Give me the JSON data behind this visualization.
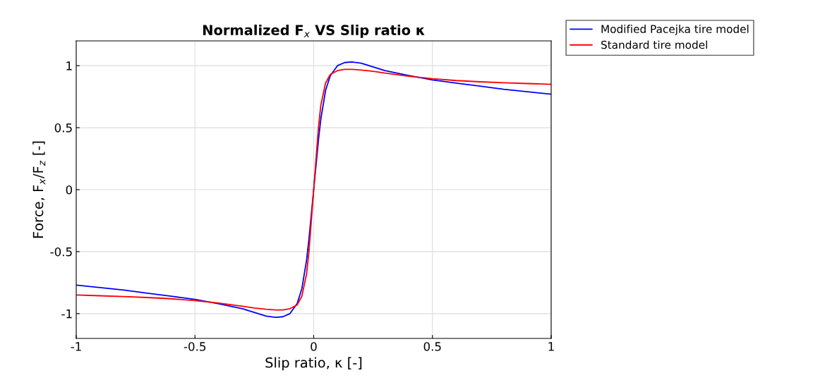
{
  "chart_data": {
    "type": "line",
    "title": "Normalized F$_{x}$ VS Slip ratio κ",
    "xlabel": "Slip ratio, κ [-]",
    "ylabel": "Force, F$_{x}$/F$_{z}$ [-]",
    "xlim": [
      -1,
      1
    ],
    "ylim": [
      -1.2,
      1.2
    ],
    "xticks": [
      -1,
      -0.5,
      0,
      0.5,
      1
    ],
    "yticks": [
      -1,
      -0.5,
      0,
      0.5,
      1
    ],
    "grid": true,
    "legend": "top right outside",
    "series": [
      {
        "name": "Modified Pacejka tire model",
        "color": "#0000ff",
        "x": [
          -1,
          -0.9,
          -0.8,
          -0.7,
          -0.6,
          -0.5,
          -0.4,
          -0.3,
          -0.25,
          -0.2,
          -0.16,
          -0.13,
          -0.1,
          -0.07,
          -0.05,
          -0.03,
          -0.02,
          -0.01,
          0,
          0.01,
          0.02,
          0.03,
          0.05,
          0.07,
          0.1,
          0.13,
          0.16,
          0.2,
          0.25,
          0.3,
          0.4,
          0.5,
          0.6,
          0.7,
          0.8,
          0.9,
          1
        ],
        "values": [
          -0.77,
          -0.79,
          -0.81,
          -0.835,
          -0.86,
          -0.885,
          -0.92,
          -0.96,
          -0.99,
          -1.02,
          -1.03,
          -1.025,
          -1.0,
          -0.92,
          -0.8,
          -0.57,
          -0.4,
          -0.2,
          0,
          0.2,
          0.4,
          0.57,
          0.8,
          0.92,
          1.0,
          1.025,
          1.03,
          1.02,
          0.99,
          0.96,
          0.92,
          0.885,
          0.86,
          0.835,
          0.81,
          0.79,
          0.77
        ]
      },
      {
        "name": "Standard tire model",
        "color": "#ff0000",
        "x": [
          -1,
          -0.9,
          -0.8,
          -0.7,
          -0.6,
          -0.5,
          -0.4,
          -0.3,
          -0.25,
          -0.2,
          -0.16,
          -0.13,
          -0.1,
          -0.07,
          -0.05,
          -0.03,
          -0.02,
          -0.01,
          0,
          0.01,
          0.02,
          0.03,
          0.05,
          0.07,
          0.1,
          0.13,
          0.16,
          0.2,
          0.25,
          0.3,
          0.4,
          0.5,
          0.6,
          0.7,
          0.8,
          0.9,
          1
        ],
        "values": [
          -0.85,
          -0.856,
          -0.862,
          -0.87,
          -0.88,
          -0.895,
          -0.915,
          -0.94,
          -0.955,
          -0.965,
          -0.97,
          -0.97,
          -0.96,
          -0.93,
          -0.86,
          -0.68,
          -0.5,
          -0.25,
          0,
          0.25,
          0.5,
          0.68,
          0.86,
          0.93,
          0.96,
          0.97,
          0.97,
          0.965,
          0.955,
          0.94,
          0.915,
          0.895,
          0.88,
          0.87,
          0.862,
          0.856,
          0.85
        ]
      }
    ]
  }
}
